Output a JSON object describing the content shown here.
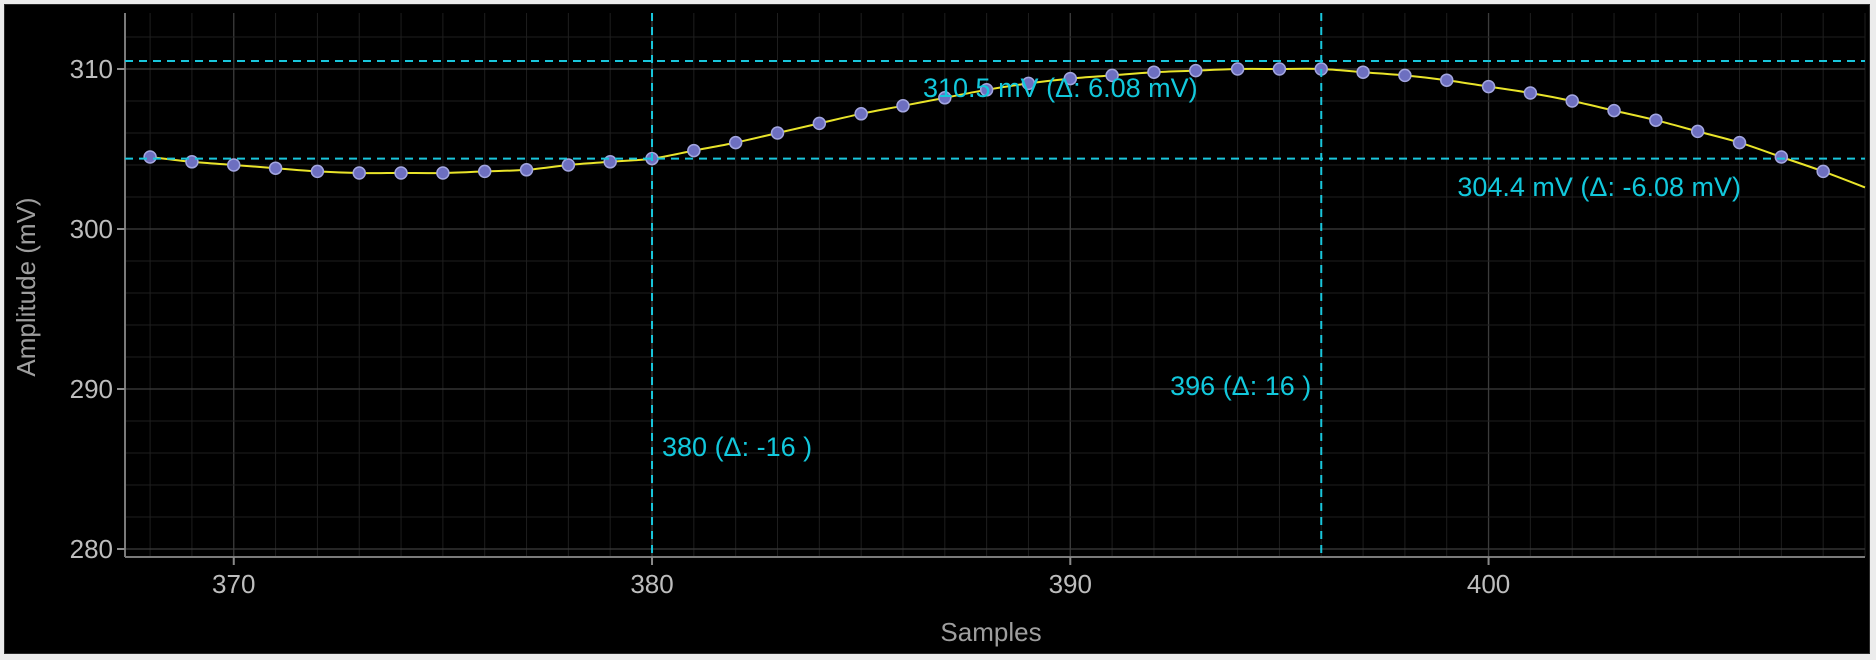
{
  "chart_data": {
    "type": "line",
    "title": "",
    "xlabel": "Samples",
    "ylabel": "Amplitude (mV)",
    "xlim": [
      367.4,
      409
    ],
    "ylim": [
      279.5,
      313.5
    ],
    "x_ticks": [
      370,
      380,
      390,
      400
    ],
    "y_ticks": [
      280,
      290,
      300,
      310
    ],
    "grid": true,
    "series": [
      {
        "x": [
          368,
          369,
          370,
          371,
          372,
          373,
          374,
          375,
          376,
          377,
          378,
          379,
          380,
          381,
          382,
          383,
          384,
          385,
          386,
          387,
          388,
          389,
          390,
          391,
          392,
          393,
          394,
          395,
          396,
          397,
          398,
          399,
          400,
          401,
          402,
          403,
          404,
          405,
          406,
          407,
          408,
          409
        ],
        "values": [
          304.5,
          304.2,
          304.0,
          303.8,
          303.6,
          303.5,
          303.5,
          303.5,
          303.6,
          303.7,
          304.0,
          304.2,
          304.4,
          304.9,
          305.4,
          306.0,
          306.6,
          307.2,
          307.7,
          308.2,
          308.7,
          309.1,
          309.4,
          309.6,
          309.8,
          309.9,
          310.0,
          310.0,
          310.0,
          309.8,
          309.6,
          309.3,
          308.9,
          308.5,
          308.0,
          307.4,
          306.8,
          306.1,
          305.4,
          304.5,
          303.6,
          302.6
        ]
      }
    ],
    "cursors": {
      "vertical": [
        {
          "x": 380,
          "label": "380  (Δ: -16 )"
        },
        {
          "x": 396,
          "label": "396  (Δ: 16 )"
        }
      ],
      "horizontal": [
        {
          "y": 310.5,
          "label": "310.5 mV (Δ: 6.08 mV)"
        },
        {
          "y": 304.4,
          "label": "304.4 mV (Δ: -6.08 mV)"
        }
      ]
    },
    "colors": {
      "background": "#000000",
      "line": "#e9e42a",
      "marker": "#6d6fc0",
      "cursor": "#19c6dc"
    }
  }
}
